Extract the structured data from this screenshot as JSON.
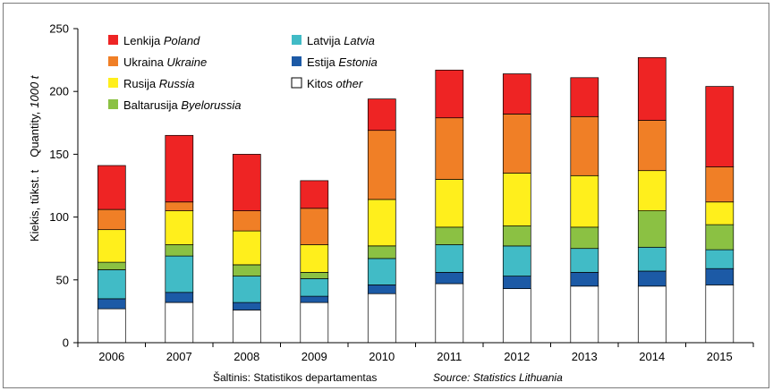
{
  "chart_data": {
    "type": "bar",
    "stacked": true,
    "categories": [
      "2006",
      "2007",
      "2008",
      "2009",
      "2010",
      "2011",
      "2012",
      "2013",
      "2014",
      "2015"
    ],
    "series": [
      {
        "name": "Kitos",
        "name_en": "other",
        "color": "#ffffff",
        "values": [
          27,
          32,
          26,
          32,
          39,
          47,
          43,
          45,
          45,
          46
        ]
      },
      {
        "name": "Estija",
        "name_en": "Estonia",
        "color": "#1c5aa6",
        "values": [
          8,
          8,
          6,
          5,
          7,
          9,
          10,
          11,
          12,
          13
        ]
      },
      {
        "name": "Latvija",
        "name_en": "Latvia",
        "color": "#41bbc6",
        "values": [
          23,
          29,
          21,
          14,
          21,
          22,
          24,
          19,
          19,
          15
        ]
      },
      {
        "name": "Baltarusija",
        "name_en": "Byelorussia",
        "color": "#8bc143",
        "values": [
          6,
          9,
          9,
          5,
          10,
          14,
          16,
          17,
          29,
          20
        ]
      },
      {
        "name": "Rusija",
        "name_en": "Russia",
        "color": "#ffef1c",
        "values": [
          26,
          27,
          27,
          22,
          37,
          38,
          42,
          41,
          32,
          18
        ]
      },
      {
        "name": "Ukraina",
        "name_en": "Ukraine",
        "color": "#f07f26",
        "values": [
          16,
          7,
          16,
          29,
          55,
          49,
          47,
          47,
          40,
          28
        ]
      },
      {
        "name": "Lenkija",
        "name_en": "Poland",
        "color": "#ee2424",
        "values": [
          35,
          53,
          45,
          22,
          25,
          38,
          32,
          31,
          50,
          64
        ]
      }
    ],
    "ylim": [
      0,
      250
    ],
    "yticks": [
      0,
      50,
      100,
      150,
      200,
      250
    ],
    "ylabel": "Kiekis, tūkst. t",
    "ylabel_en": "Quantity,",
    "ylabel_en_unit": "1000 t",
    "grid": false,
    "legend_placement": "top-left",
    "legend": [
      {
        "lt": "Lenkija",
        "en": "Poland",
        "color": "#ee2424"
      },
      {
        "lt": "Ukraina",
        "en": "Ukraine",
        "color": "#f07f26"
      },
      {
        "lt": "Rusija",
        "en": "Russia",
        "color": "#ffef1c"
      },
      {
        "lt": "Baltarusija",
        "en": "Byelorussia",
        "color": "#8bc143"
      },
      {
        "lt": "Latvija",
        "en": "Latvia",
        "color": "#41bbc6"
      },
      {
        "lt": "Estija",
        "en": "Estonia",
        "color": "#1c5aa6"
      },
      {
        "lt": "Kitos",
        "en": "other",
        "color": "#ffffff"
      }
    ]
  },
  "source": {
    "lt": "Šaltinis: Statistikos departamentas",
    "en": "Source: Statistics Lithuania"
  }
}
